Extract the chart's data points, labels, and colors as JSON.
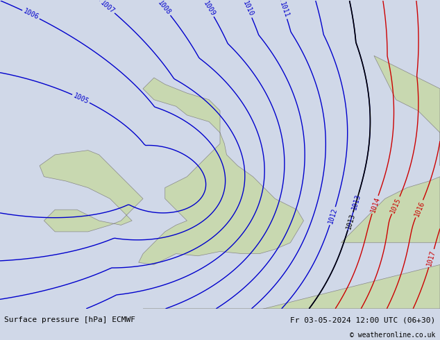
{
  "title_left": "Surface pressure [hPa] ECMWF",
  "title_right": "Fr 03-05-2024 12:00 UTC (06+30)",
  "copyright": "© weatheronline.co.uk",
  "bg_color": "#d0d8e8",
  "land_color": "#c8d8b0",
  "sea_color": "#d0d8e8",
  "blue_color": "#0000cc",
  "red_color": "#cc0000",
  "black_color": "#000000",
  "figsize": [
    6.34,
    4.9
  ],
  "dpi": 100,
  "footer_bg": "#e8e8e8",
  "font_size_labels": 7,
  "font_size_footer": 8
}
